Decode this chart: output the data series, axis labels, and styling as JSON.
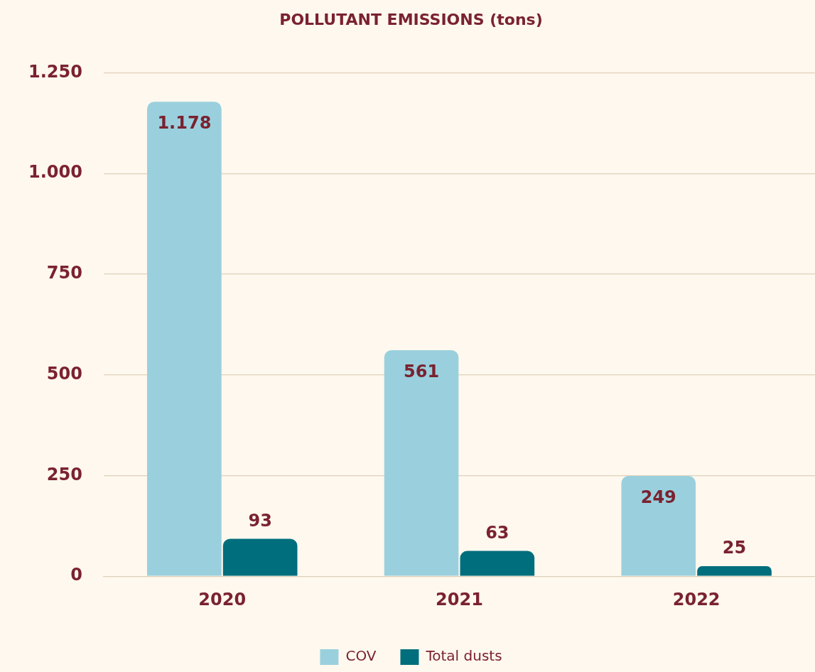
{
  "chart_data": {
    "type": "bar",
    "title": "POLLUTANT EMISSIONS (tons)",
    "categories": [
      "2020",
      "2021",
      "2022"
    ],
    "series": [
      {
        "name": "COV",
        "color": "#9ad0dd",
        "values": [
          1178,
          561,
          249
        ],
        "value_labels": [
          "1.178",
          "561",
          "249"
        ]
      },
      {
        "name": "Total dusts",
        "color": "#006e7c",
        "values": [
          93,
          63,
          25
        ],
        "value_labels": [
          "93",
          "63",
          "25"
        ]
      }
    ],
    "ylim": [
      0,
      1250
    ],
    "yticks": [
      0,
      250,
      500,
      750,
      {
        "value": 1000,
        "label": "1.000"
      },
      {
        "value": 1250,
        "label": "1.250"
      }
    ],
    "grid": "y",
    "legend": "bottom"
  }
}
